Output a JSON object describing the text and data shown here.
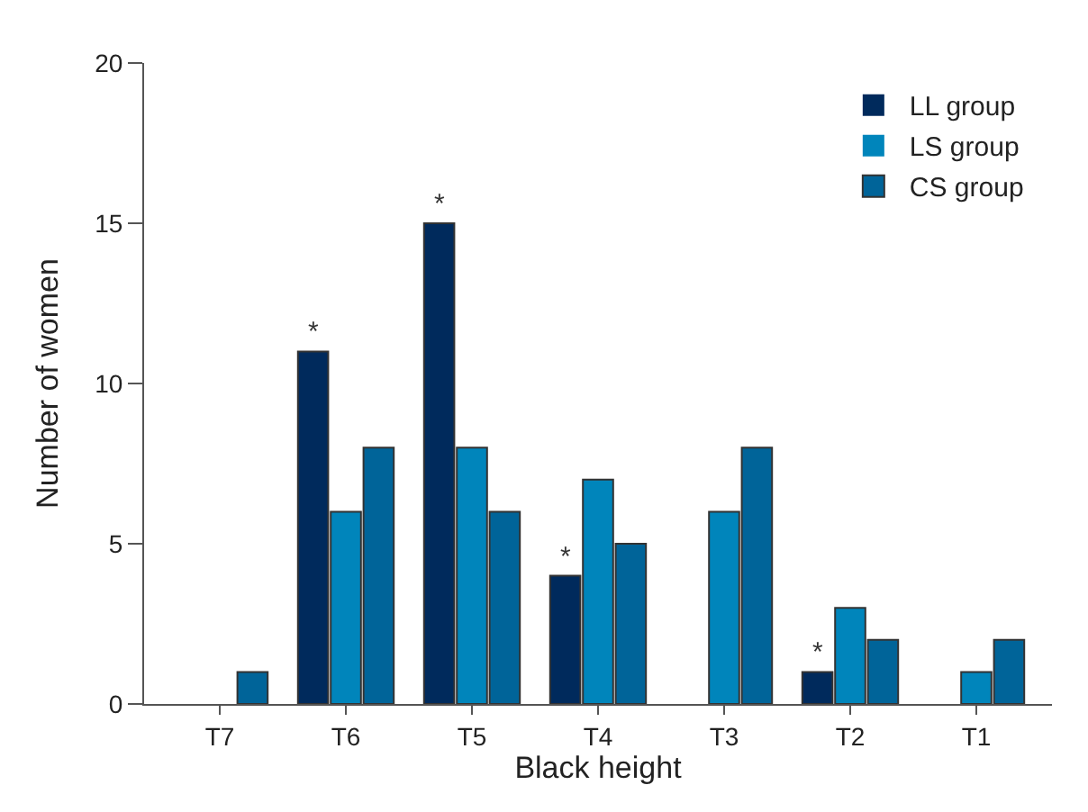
{
  "chart_data": {
    "type": "bar",
    "xlabel": "Black height",
    "ylabel": "Number of women",
    "categories": [
      "T7",
      "T6",
      "T5",
      "T4",
      "T3",
      "T2",
      "T1"
    ],
    "series": [
      {
        "name": "LL group",
        "color": "#002a5c",
        "values": [
          0,
          11,
          15,
          4,
          0,
          1,
          0
        ]
      },
      {
        "name": "LS group",
        "color": "#0085bb",
        "values": [
          0,
          6,
          8,
          7,
          6,
          3,
          1
        ]
      },
      {
        "name": "CS group",
        "color": "#006499",
        "values": [
          1,
          8,
          6,
          5,
          8,
          2,
          2
        ]
      }
    ],
    "ylim": [
      0,
      20
    ],
    "yticks": [
      0,
      5,
      10,
      15,
      20
    ],
    "legend": "top right",
    "annotations": [
      "*",
      "*",
      "*",
      "*"
    ]
  }
}
